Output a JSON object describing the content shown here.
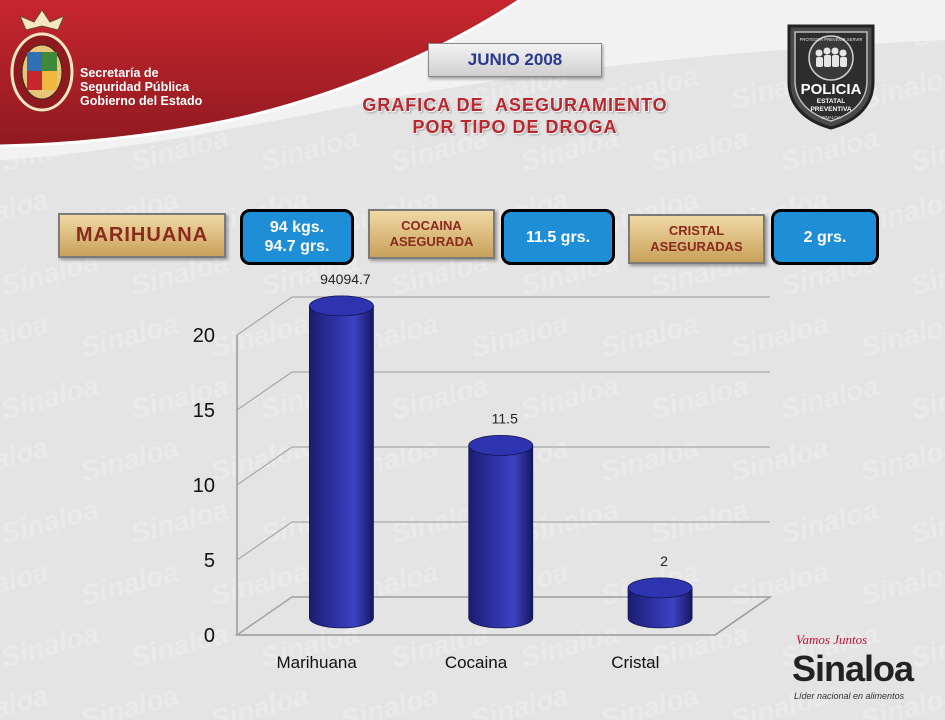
{
  "header": {
    "institution_lines": [
      "Secretaría de",
      "Seguridad Pública",
      "Gobierno del Estado"
    ],
    "month": "JUNIO 2008",
    "title_line1": "GRAFICA DE  ASEGURAMIENTO",
    "title_line2": "POR TIPO DE DROGA",
    "badge": {
      "top_text": "PROTEGER PREVENIR SERVIR",
      "name": "POLICIA",
      "sub1": "ESTATAL",
      "sub2": "PREVENTIVA",
      "bottom": "SINALOA"
    }
  },
  "summary": {
    "marihuana_label": "MARIHUANA",
    "marihuana_value_line1": "94 kgs.",
    "marihuana_value_line2": "94.7 grs.",
    "cocaina_label_line1": "COCAINA",
    "cocaina_label_line2": "ASEGURADA",
    "cocaina_value": "11.5 grs.",
    "cristal_label_line1": "CRISTAL",
    "cristal_label_line2": "ASEGURADAS",
    "cristal_value": "2 grs."
  },
  "chart_data": {
    "type": "bar",
    "categories": [
      "Marihuana",
      "Cocaina",
      "Cristal"
    ],
    "values": [
      94094.7,
      11.5,
      2
    ],
    "data_labels": [
      "94094.7",
      "11.5",
      "2"
    ],
    "ylim": [
      0,
      20
    ],
    "yticks": [
      "0",
      "5",
      "10",
      "15",
      "20"
    ],
    "grid": true,
    "bar_color": "#2b2f9e",
    "note": "3D cylinder bars; Marihuana bar exceeds axis and is clipped at top"
  },
  "footer": {
    "tagline": "Vamos Juntos",
    "name": "Sinaloa",
    "subtitle": "Líder nacional en alimentos"
  },
  "colors": {
    "header_red": "#b3202a",
    "title_red": "#b8262e",
    "value_blue": "#1e8fd6",
    "label_tan": "#d9b774"
  }
}
